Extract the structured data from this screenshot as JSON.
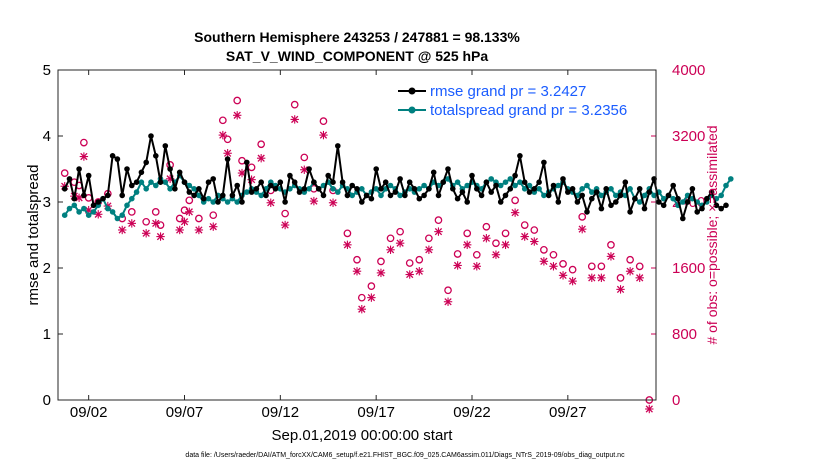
{
  "chart_data": {
    "type": "line",
    "title": "Southern Hemisphere 243253 / 247881 = 98.133%",
    "subtitle": "SAT_V_WIND_COMPONENT @ 525 hPa",
    "xlabel": "Sep.01,2019 00:00:00 start",
    "ylabel": "rmse and totalspread",
    "y2label": "# of obs: o=possible; ×=assimilated",
    "xlim": [
      0.4,
      31.6
    ],
    "ylim": [
      0,
      5
    ],
    "y2lim": [
      0,
      4000
    ],
    "xticks": [
      2,
      7,
      12,
      17,
      22,
      27
    ],
    "xtick_labels": [
      "09/02",
      "09/07",
      "09/12",
      "09/17",
      "09/22",
      "09/27"
    ],
    "yticks": [
      0,
      1,
      2,
      3,
      4,
      5
    ],
    "ytick_labels": [
      "0",
      "1",
      "2",
      "3",
      "4",
      "5"
    ],
    "y2ticks": [
      0,
      800,
      1600,
      2400,
      3200,
      4000
    ],
    "y2tick_labels": [
      "0",
      "800",
      "1600",
      "2400",
      "3200",
      "4000"
    ],
    "legend_position": "top-right",
    "series": [
      {
        "name": "rmse grand pr = 3.2427",
        "axis": "left",
        "color": "#000000",
        "x_start": 0.75,
        "x_step": 0.25,
        "values": [
          3.2,
          3.35,
          3.05,
          3.5,
          3.1,
          3.4,
          2.95,
          3.0,
          3.05,
          3.1,
          3.7,
          3.65,
          3.1,
          3.5,
          3.25,
          3.3,
          3.45,
          3.6,
          4.0,
          3.7,
          3.3,
          3.85,
          3.5,
          3.2,
          3.45,
          3.3,
          3.15,
          3.1,
          3.2,
          3.05,
          3.3,
          3.35,
          3.0,
          3.1,
          3.65,
          3.1,
          3.25,
          3.0,
          3.6,
          3.15,
          3.2,
          3.3,
          3.1,
          3.25,
          3.2,
          3.3,
          3.0,
          3.4,
          3.3,
          3.15,
          3.2,
          3.5,
          3.3,
          3.2,
          3.1,
          3.4,
          3.3,
          3.85,
          3.3,
          3.1,
          3.25,
          3.2,
          3.0,
          3.1,
          3.05,
          3.5,
          3.2,
          3.3,
          3.1,
          3.15,
          3.35,
          3.1,
          3.3,
          3.2,
          3.05,
          3.1,
          3.2,
          3.45,
          3.1,
          3.3,
          3.5,
          3.2,
          3.05,
          3.15,
          3.0,
          3.4,
          3.2,
          3.1,
          3.3,
          3.15,
          3.25,
          3.0,
          3.1,
          3.2,
          3.4,
          3.7,
          3.3,
          3.15,
          3.2,
          3.3,
          3.6,
          3.1,
          3.25,
          3.0,
          3.35,
          3.15,
          3.2,
          3.0,
          3.1,
          2.85,
          3.05,
          3.15,
          2.9,
          3.2,
          2.95,
          3.0,
          3.1,
          3.3,
          2.85,
          3.05,
          3.2,
          2.9,
          3.15,
          3.35,
          3.0,
          2.95,
          3.1,
          3.25,
          3.05,
          2.75,
          3.0,
          3.2,
          2.85,
          2.9,
          3.05,
          3.15,
          2.95,
          2.9,
          2.95
        ],
        "dense_values_note": "rmse per 6-hourly analysis time"
      },
      {
        "name": "totalspread grand pr = 3.2356",
        "axis": "left",
        "color": "#008080",
        "x_start": 0.75,
        "x_step": 0.25,
        "values": [
          2.8,
          2.9,
          2.95,
          2.85,
          2.9,
          2.8,
          2.85,
          2.95,
          3.05,
          2.9,
          2.85,
          2.75,
          2.8,
          2.95,
          3.05,
          3.15,
          3.3,
          3.2,
          3.3,
          3.25,
          3.35,
          3.3,
          3.2,
          3.3,
          3.4,
          3.3,
          3.25,
          3.2,
          3.1,
          3.0,
          3.05,
          3.0,
          3.1,
          3.05,
          3.0,
          3.05,
          3.0,
          3.1,
          3.15,
          3.2,
          3.15,
          3.1,
          3.2,
          3.3,
          3.25,
          3.2,
          3.15,
          3.2,
          3.25,
          3.2,
          3.15,
          3.2,
          3.3,
          3.2,
          3.25,
          3.3,
          3.2,
          3.15,
          3.25,
          3.2,
          3.1,
          3.15,
          3.2,
          3.1,
          3.15,
          3.2,
          3.1,
          3.2,
          3.25,
          3.2,
          3.1,
          3.15,
          3.2,
          3.15,
          3.2,
          3.25,
          3.2,
          3.3,
          3.25,
          3.3,
          3.35,
          3.25,
          3.3,
          3.2,
          3.25,
          3.3,
          3.25,
          3.2,
          3.3,
          3.35,
          3.3,
          3.25,
          3.3,
          3.35,
          3.25,
          3.3,
          3.2,
          3.25,
          3.15,
          3.2,
          3.1,
          3.15,
          3.2,
          3.25,
          3.3,
          3.2,
          3.15,
          3.1,
          3.2,
          3.25,
          3.15,
          3.2,
          3.1,
          3.15,
          3.2,
          3.1,
          3.15,
          3.1,
          3.2,
          3.05,
          3.0,
          3.1,
          3.2,
          3.1,
          3.15,
          3.05,
          3.1,
          3.05,
          2.95,
          3.0,
          3.1,
          3.05,
          3.0,
          2.95,
          3.0,
          3.1,
          3.05,
          3.1,
          3.25,
          3.35
        ]
      },
      {
        "name": "possible",
        "axis": "right",
        "color": "#cc0055",
        "marker": "o",
        "x": [
          0.75,
          1.25,
          1.5,
          1.75,
          2.0,
          2.5,
          3.0,
          3.75,
          4.25,
          5.0,
          5.5,
          5.75,
          6.25,
          6.75,
          7.0,
          7.25,
          7.75,
          8.5,
          9.0,
          9.25,
          9.75,
          10.0,
          10.5,
          11.0,
          11.5,
          12.25,
          12.75,
          13.25,
          13.75,
          14.25,
          14.75,
          15.5,
          16.0,
          16.25,
          16.75,
          17.25,
          17.75,
          18.25,
          18.75,
          19.25,
          19.75,
          20.25,
          20.75,
          21.25,
          21.75,
          22.25,
          22.75,
          23.25,
          23.75,
          24.25,
          24.75,
          25.25,
          25.75,
          26.25,
          26.75,
          27.25,
          27.75,
          28.25,
          28.75,
          29.25,
          29.75,
          30.25,
          30.75,
          31.25
        ],
        "values": [
          2750,
          2640,
          2600,
          3120,
          2450,
          2400,
          2500,
          2200,
          2280,
          2160,
          2280,
          2120,
          2850,
          2200,
          2300,
          2420,
          2200,
          2240,
          3390,
          3160,
          3630,
          2900,
          2820,
          3100,
          2540,
          2260,
          3580,
          2940,
          2560,
          3380,
          2540,
          2020,
          1700,
          1240,
          1380,
          1680,
          1960,
          2040,
          1660,
          1700,
          1960,
          2180,
          1330,
          1770,
          2020,
          1760,
          2100,
          1900,
          2020,
          2420,
          2120,
          2060,
          1820,
          1760,
          1650,
          1580,
          2220,
          1620,
          1620,
          1880,
          1480,
          1700,
          1620,
          0
        ]
      },
      {
        "name": "assimilated",
        "axis": "right",
        "color": "#cc0055",
        "marker": "x",
        "x": [
          0.75,
          1.25,
          1.5,
          1.75,
          2.0,
          2.5,
          3.0,
          3.75,
          4.25,
          5.0,
          5.5,
          5.75,
          6.25,
          6.75,
          7.0,
          7.25,
          7.75,
          8.5,
          9.0,
          9.25,
          9.75,
          10.0,
          10.5,
          11.0,
          11.5,
          12.25,
          12.75,
          13.25,
          13.75,
          14.25,
          14.75,
          15.5,
          16.0,
          16.25,
          16.75,
          17.25,
          17.75,
          18.25,
          18.75,
          19.25,
          19.75,
          20.25,
          20.75,
          21.25,
          21.75,
          22.25,
          22.75,
          23.25,
          23.75,
          24.25,
          24.75,
          25.25,
          25.75,
          26.25,
          26.75,
          27.25,
          27.75,
          28.25,
          28.75,
          29.25,
          29.75,
          30.25,
          30.75,
          31.25
        ],
        "values": [
          2700,
          2580,
          2560,
          3060,
          2410,
          2360,
          2460,
          2170,
          2250,
          2130,
          2250,
          2090,
          2790,
          2170,
          2270,
          2390,
          2170,
          2210,
          3320,
          3100,
          3560,
          2860,
          2780,
          3040,
          2500,
          2230,
          3510,
          2900,
          2520,
          3320,
          2500,
          1990,
          1670,
          1210,
          1350,
          1650,
          1930,
          2010,
          1630,
          1670,
          1930,
          2150,
          1300,
          1740,
          1990,
          1730,
          2070,
          1870,
          1990,
          2380,
          2090,
          2030,
          1790,
          1730,
          1620,
          1550,
          2180,
          1590,
          1590,
          1850,
          1450,
          1670,
          1590,
          0
        ]
      }
    ]
  },
  "footer": {
    "data_file": "data file: /Users/raeder/DAI/ATM_forcXX/CAM6_setup/f.e21.FHIST_BGC.f09_025.CAM6assim.011/Diags_NTrS_2019-09/obs_diag_output.nc"
  },
  "colors": {
    "rmse": "#000000",
    "spread": "#008080",
    "obs": "#cc0055",
    "legend_text": "#1a5cff"
  }
}
